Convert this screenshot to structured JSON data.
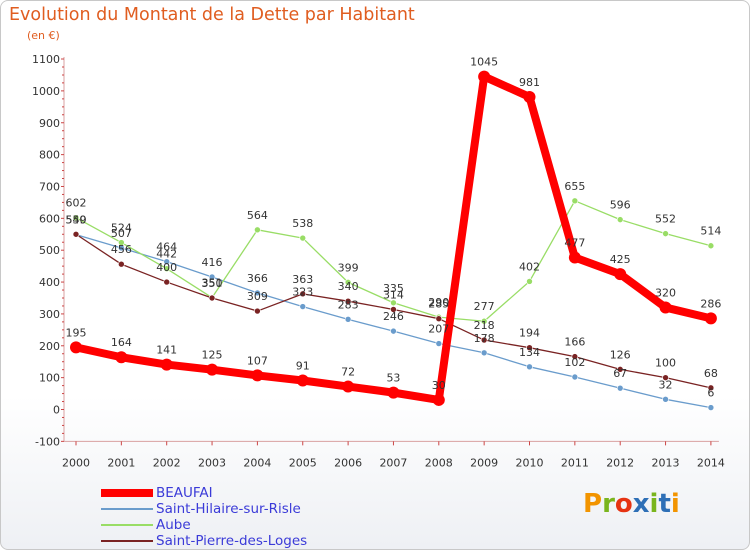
{
  "header": {
    "title": "Evolution du Montant de la Dette par Habitant",
    "unit": "(en €)"
  },
  "logo": {
    "text": "Proxiti",
    "colors": [
      "#f29400",
      "#7ab51d",
      "#e63312",
      "#2e6fb6",
      "#7ab51d",
      "#2e6fb6",
      "#f29400"
    ]
  },
  "chart_data": {
    "type": "line",
    "title": "Evolution du Montant de la Dette par Habitant",
    "ylabel": "(en €)",
    "xlabel": "",
    "ylim": [
      -100,
      1100
    ],
    "yticks": [
      -100,
      0,
      100,
      200,
      300,
      400,
      500,
      600,
      700,
      800,
      900,
      1000,
      1100
    ],
    "categories": [
      "2000",
      "2001",
      "2002",
      "2003",
      "2004",
      "2005",
      "2006",
      "2007",
      "2008",
      "2009",
      "2010",
      "2011",
      "2012",
      "2013",
      "2014"
    ],
    "grid": false,
    "legend_position": "bottom-left",
    "series": [
      {
        "name": "BEAUFAI",
        "color": "#ff0000",
        "values": [
          195,
          164,
          141,
          125,
          107,
          91,
          72,
          53,
          30,
          1045,
          981,
          477,
          425,
          320,
          286
        ],
        "labels": [
          "195",
          "164",
          "141",
          "125",
          "107",
          "91",
          "72",
          "53",
          "30",
          "1045",
          "981",
          "477",
          "425",
          "320",
          "286"
        ]
      },
      {
        "name": "Saint-Hilaire-sur-Risle",
        "color": "#6a9ccc",
        "values": [
          549,
          507,
          464,
          416,
          366,
          323,
          283,
          246,
          207,
          178,
          134,
          102,
          67,
          32,
          6
        ],
        "labels": [
          "549",
          "507",
          "464",
          "416",
          "366",
          "323",
          "283",
          "246",
          "207",
          "178",
          "134",
          "102",
          "67",
          "32",
          "6"
        ]
      },
      {
        "name": "Aube",
        "color": "#99dd66",
        "values": [
          602,
          524,
          442,
          351,
          564,
          538,
          399,
          335,
          290,
          277,
          402,
          655,
          596,
          552,
          514
        ],
        "labels": [
          "602",
          "524",
          "442",
          "351",
          "564",
          "538",
          "399",
          "335",
          "290",
          "277",
          "402",
          "655",
          "596",
          "552",
          "514"
        ]
      },
      {
        "name": "Saint-Pierre-des-Loges",
        "color": "#7a2323",
        "values": [
          550,
          456,
          400,
          350,
          309,
          363,
          340,
          314,
          285,
          218,
          194,
          166,
          126,
          100,
          68
        ],
        "labels": [
          "550",
          "456",
          "400",
          "350",
          "309",
          "363",
          "340",
          "314",
          "285",
          "218",
          "194",
          "166",
          "126",
          "100",
          "68"
        ]
      }
    ]
  }
}
